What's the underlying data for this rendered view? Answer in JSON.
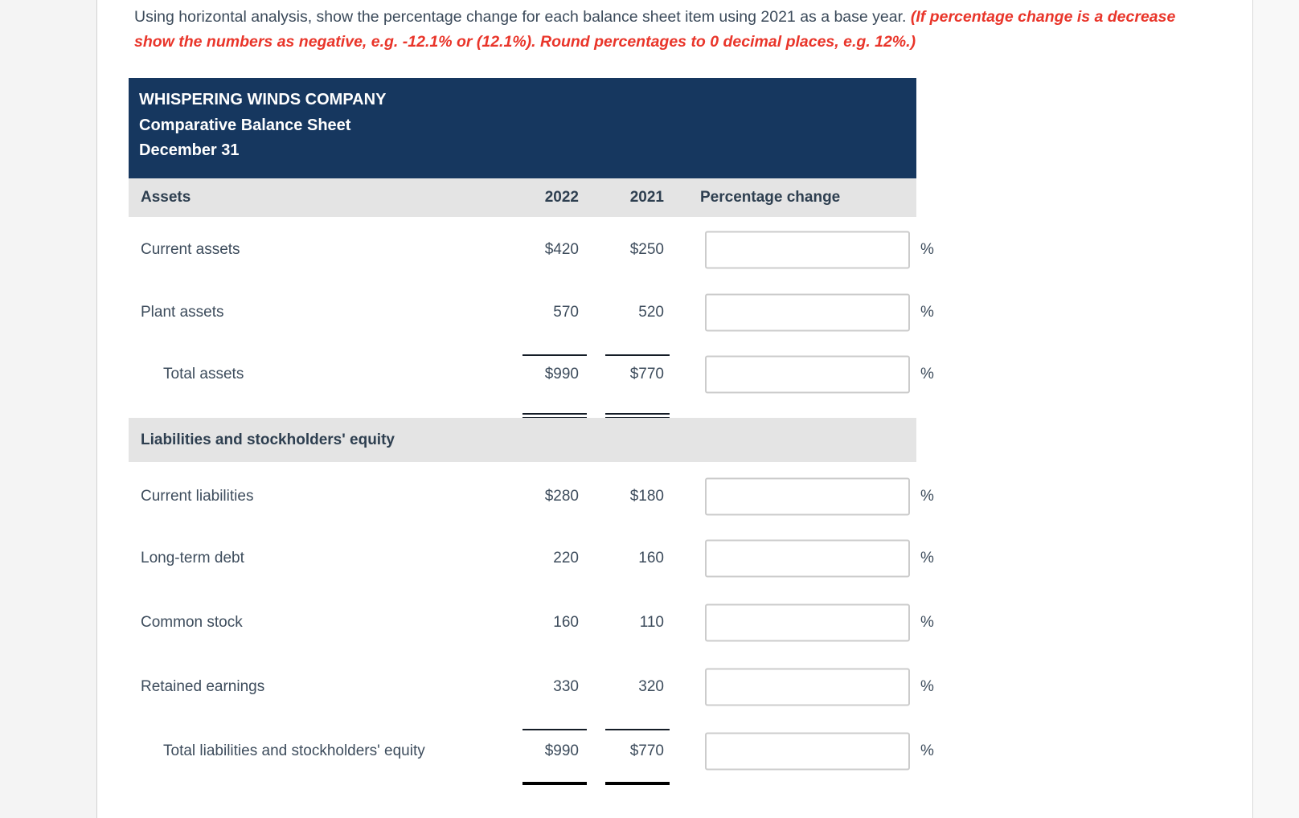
{
  "instruction": {
    "normal": "Using horizontal analysis, show the percentage change for each balance sheet item using 2021 as a base year. ",
    "emphasis": "(If percentage change is a decrease show the numbers as negative, e.g. -12.1% or (12.1%). Round percentages to 0 decimal places, e.g. 12%.)"
  },
  "statement": {
    "company": "WHISPERING WINDS COMPANY",
    "title": "Comparative Balance Sheet",
    "date": "December 31",
    "columns": [
      "2022",
      "2021",
      "Percentage change"
    ],
    "assets_header": "Assets",
    "liabilities_header": "Liabilities and stockholders' equity",
    "percent_unit": "%",
    "rows": [
      {
        "label": "Current assets",
        "v2022": "$420",
        "v2021": "$250",
        "input": ""
      },
      {
        "label": "Plant assets",
        "v2022": "570",
        "v2021": "520",
        "input": ""
      },
      {
        "label": "Total assets",
        "v2022": "$990",
        "v2021": "$770",
        "input": ""
      },
      {
        "label": "Current liabilities",
        "v2022": "$280",
        "v2021": "$180",
        "input": ""
      },
      {
        "label": "Long-term debt",
        "v2022": "220",
        "v2021": "160",
        "input": ""
      },
      {
        "label": "Common stock",
        "v2022": "160",
        "v2021": "110",
        "input": ""
      },
      {
        "label": "Retained earnings",
        "v2022": "330",
        "v2021": "320",
        "input": ""
      },
      {
        "label": "Total liabilities and stockholders' equity",
        "v2022": "$990",
        "v2021": "$770",
        "input": ""
      }
    ]
  },
  "colors": {
    "header_navy": "#16375f",
    "section_band_gray": "#e4e4e4",
    "emphasis_red": "#e9352a",
    "body_text": "#3d4c5c",
    "rule_black": "#141c26"
  }
}
